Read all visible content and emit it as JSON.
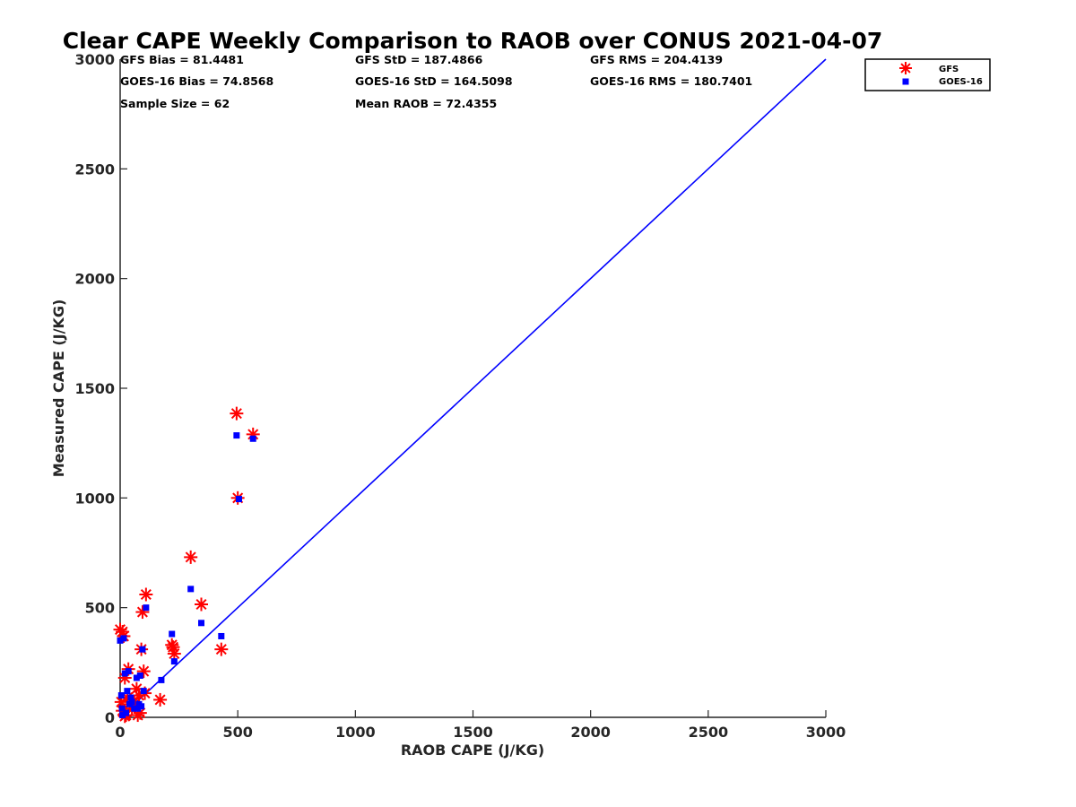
{
  "chart_data": {
    "type": "scatter",
    "title": "Clear CAPE Weekly Comparison to RAOB over CONUS 2021-04-07",
    "xlabel": "RAOB CAPE (J/KG)",
    "ylabel": "Measured CAPE (J/KG)",
    "xlim": [
      0,
      3000
    ],
    "ylim": [
      0,
      3000
    ],
    "xticks": [
      "0",
      "500",
      "1000",
      "1500",
      "2000",
      "2500",
      "3000"
    ],
    "yticks": [
      "0",
      "500",
      "1000",
      "1500",
      "2000",
      "2500",
      "3000"
    ],
    "grid": false,
    "legend_position": "top-right, outside plot",
    "stats": [
      "GFS Bias = 81.4481",
      "GFS StD = 187.4866",
      "GFS RMS = 204.4139",
      "GOES-16 Bias = 74.8568",
      "GOES-16 StD = 164.5098",
      "GOES-16 RMS = 180.7401",
      "Sample Size = 62",
      "Mean RAOB = 72.4355"
    ],
    "reference_line": {
      "x": [
        0,
        3000
      ],
      "y": [
        0,
        3000
      ],
      "color": "#0000ff"
    },
    "series": [
      {
        "name": "GFS",
        "marker": "asterisk",
        "color": "#ff0000",
        "points": [
          [
            0,
            400
          ],
          [
            10,
            390
          ],
          [
            15,
            370
          ],
          [
            20,
            5
          ],
          [
            5,
            70
          ],
          [
            10,
            30
          ],
          [
            20,
            180
          ],
          [
            25,
            10
          ],
          [
            30,
            90
          ],
          [
            35,
            220
          ],
          [
            40,
            60
          ],
          [
            50,
            40
          ],
          [
            60,
            70
          ],
          [
            70,
            130
          ],
          [
            75,
            10
          ],
          [
            80,
            100
          ],
          [
            85,
            20
          ],
          [
            90,
            310
          ],
          [
            95,
            480
          ],
          [
            100,
            210
          ],
          [
            105,
            110
          ],
          [
            110,
            560
          ],
          [
            170,
            80
          ],
          [
            220,
            330
          ],
          [
            225,
            320
          ],
          [
            230,
            290
          ],
          [
            300,
            730
          ],
          [
            345,
            515
          ],
          [
            430,
            310
          ],
          [
            495,
            1385
          ],
          [
            500,
            1000
          ],
          [
            565,
            1290
          ]
        ]
      },
      {
        "name": "GOES-16",
        "marker": "square",
        "color": "#0000ff",
        "points": [
          [
            0,
            350
          ],
          [
            5,
            100
          ],
          [
            8,
            40
          ],
          [
            10,
            10
          ],
          [
            15,
            360
          ],
          [
            20,
            200
          ],
          [
            25,
            20
          ],
          [
            30,
            120
          ],
          [
            35,
            210
          ],
          [
            40,
            60
          ],
          [
            45,
            90
          ],
          [
            50,
            70
          ],
          [
            60,
            40
          ],
          [
            70,
            180
          ],
          [
            75,
            40
          ],
          [
            80,
            60
          ],
          [
            85,
            190
          ],
          [
            90,
            50
          ],
          [
            95,
            310
          ],
          [
            100,
            120
          ],
          [
            110,
            500
          ],
          [
            175,
            170
          ],
          [
            220,
            380
          ],
          [
            230,
            255
          ],
          [
            300,
            585
          ],
          [
            345,
            430
          ],
          [
            430,
            370
          ],
          [
            495,
            1285
          ],
          [
            505,
            995
          ],
          [
            565,
            1270
          ]
        ]
      }
    ]
  }
}
